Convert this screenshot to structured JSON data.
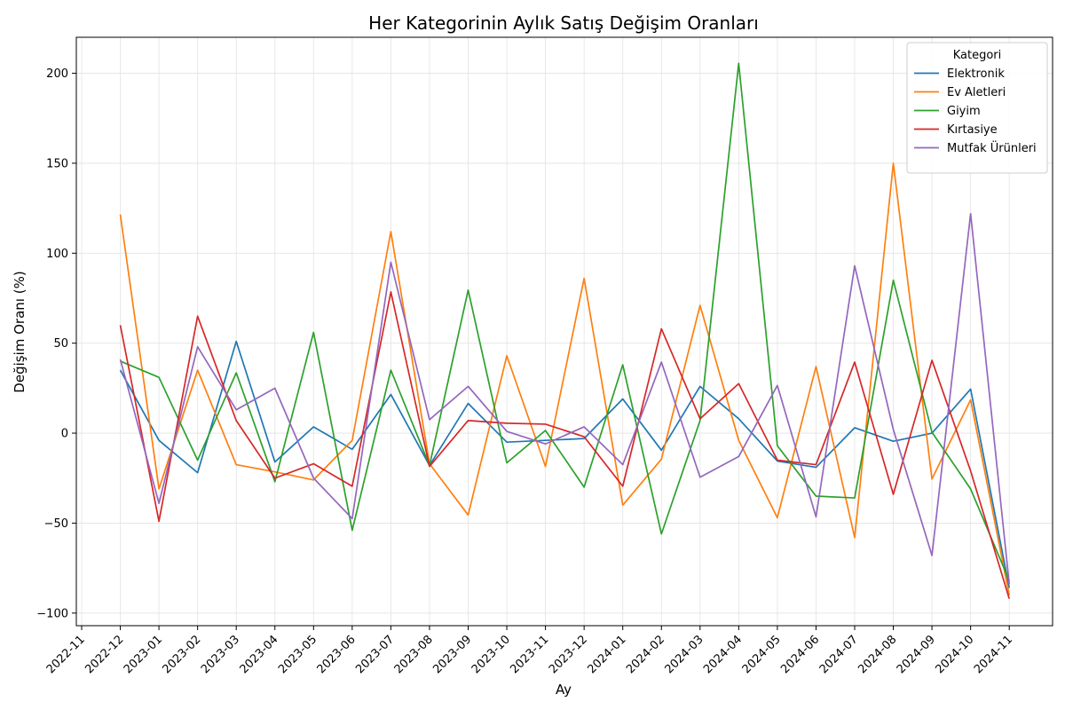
{
  "chart_data": {
    "type": "line",
    "title": "Her Kategorinin Aylık Satış Değişim Oranları",
    "xlabel": "Ay",
    "ylabel": "Değişim Oranı (%)",
    "ylim": [
      -107,
      220
    ],
    "yticks": [
      -100,
      -50,
      0,
      50,
      100,
      150,
      200
    ],
    "ytick_labels": [
      "−100",
      "−50",
      "0",
      "50",
      "100",
      "150",
      "200"
    ],
    "xticks": [
      "2022-11",
      "2022-12",
      "2023-01",
      "2023-02",
      "2023-03",
      "2023-04",
      "2023-05",
      "2023-06",
      "2023-07",
      "2023-08",
      "2023-09",
      "2023-10",
      "2023-11",
      "2023-12",
      "2024-01",
      "2024-02",
      "2024-03",
      "2024-04",
      "2024-05",
      "2024-06",
      "2024-07",
      "2024-08",
      "2024-09",
      "2024-10",
      "2024-11"
    ],
    "x": [
      "2022-12",
      "2023-01",
      "2023-02",
      "2023-03",
      "2023-04",
      "2023-05",
      "2023-06",
      "2023-07",
      "2023-08",
      "2023-09",
      "2023-10",
      "2023-11",
      "2023-12",
      "2024-01",
      "2024-02",
      "2024-03",
      "2024-04",
      "2024-05",
      "2024-06",
      "2024-07",
      "2024-08",
      "2024-09",
      "2024-10",
      "2024-11"
    ],
    "grid": true,
    "legend": {
      "title": "Kategori",
      "placement": "top-right"
    },
    "series": [
      {
        "name": "Elektronik",
        "color": "#1f77b4",
        "values": [
          35,
          -4,
          -22,
          51,
          -16,
          3.5,
          -9,
          21.5,
          -18,
          16.5,
          -5,
          -4,
          -3,
          19,
          -9.5,
          26,
          8,
          -15.5,
          -19,
          3,
          -4.5,
          0,
          24.5,
          -86
        ]
      },
      {
        "name": "Ev Aletleri",
        "color": "#ff7f0e",
        "values": [
          121.5,
          -31,
          35,
          -17.5,
          -21.5,
          -26,
          -4,
          112,
          -17,
          -45.5,
          43,
          -18.5,
          86,
          -40,
          -14.5,
          71,
          -4,
          -47,
          37,
          -58,
          150,
          -25.5,
          18.5,
          -90
        ]
      },
      {
        "name": "Giyim",
        "color": "#2ca02c",
        "values": [
          40,
          31,
          -15,
          33.5,
          -27,
          56,
          -54,
          35,
          -18,
          79.5,
          -16.5,
          1.5,
          -30,
          38,
          -56,
          7,
          205.5,
          -7,
          -35,
          -36,
          85,
          0.5,
          -31,
          -82
        ]
      },
      {
        "name": "Kırtasiye",
        "color": "#d62728",
        "values": [
          60,
          -49,
          65,
          7,
          -25,
          -17,
          -29.5,
          78.5,
          -18.5,
          7,
          5.5,
          5,
          -2,
          -29.5,
          58,
          8,
          27.5,
          -15,
          -17.5,
          39.5,
          -34,
          40.5,
          -21,
          -92
        ]
      },
      {
        "name": "Mutfak Ürünleri",
        "color": "#9467bd",
        "values": [
          41,
          -39,
          48,
          13,
          25,
          -25,
          -47.5,
          95,
          7.5,
          26,
          1,
          -6,
          3.5,
          -17.5,
          39.5,
          -24.5,
          -13,
          26.5,
          -46.5,
          93,
          2,
          -68,
          122,
          -84
        ]
      }
    ]
  }
}
